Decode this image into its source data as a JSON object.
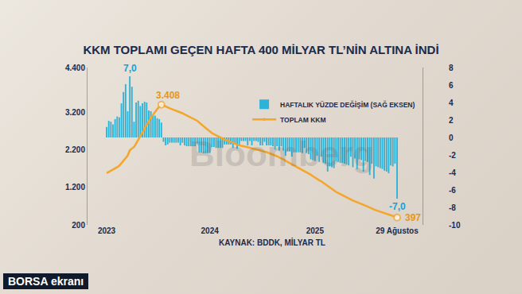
{
  "chart_data": {
    "type": "combo",
    "title": "KKM TOPLAMI GEÇEN HAFTA 400 MİLYAR TL’NİN ALTINA İNDİ",
    "source": "KAYNAK: BDDK, MİLYAR TL",
    "logo": "BORSA ekranı",
    "watermark": "Bloomberg",
    "categories": [
      "2023",
      null,
      null,
      null,
      null,
      null,
      null,
      null,
      null,
      null,
      null,
      null,
      null,
      null,
      null,
      null,
      null,
      null,
      null,
      null,
      null,
      null,
      null,
      null,
      null,
      null,
      null,
      null,
      null,
      null,
      null,
      null,
      null,
      null,
      null,
      null,
      null,
      null,
      null,
      null,
      null,
      null,
      null,
      null,
      null,
      null,
      null,
      null,
      null,
      "2024",
      null,
      null,
      null,
      null,
      null,
      null,
      null,
      null,
      null,
      null,
      null,
      null,
      null,
      null,
      null,
      null,
      null,
      null,
      null,
      null,
      null,
      null,
      null,
      null,
      null,
      null,
      null,
      null,
      null,
      null,
      null,
      null,
      null,
      null,
      null,
      null,
      null,
      null,
      null,
      null,
      null,
      null,
      null,
      null,
      null,
      null,
      null,
      null,
      null,
      "2025",
      null,
      null,
      null,
      null,
      null,
      null,
      null,
      null,
      null,
      null,
      null,
      null,
      null,
      null,
      null,
      null,
      null,
      null,
      null,
      null,
      null,
      null,
      null,
      null,
      null,
      null,
      null,
      null,
      null,
      null,
      null,
      null,
      null,
      null,
      null,
      null,
      null,
      null,
      "29 Ağustos"
    ],
    "series": [
      {
        "name": "HAFTALIK YÜZDE DEĞİŞİM (SAĞ EKSEN)",
        "type": "bar",
        "color": "#2bb3d9",
        "axis": "y2",
        "values": [
          1.2,
          1.9,
          1.8,
          1.5,
          2.1,
          2.4,
          2.3,
          3.9,
          5.2,
          6.1,
          3.0,
          7.0,
          5.8,
          1.8,
          4.0,
          4.2,
          3.6,
          3.9,
          4.1,
          4.0,
          3.1,
          3.0,
          2.6,
          2.5,
          2.2,
          2.1,
          1.7,
          -0.5,
          -0.9,
          -0.8,
          -0.6,
          -0.6,
          -0.6,
          -0.6,
          -0.6,
          -0.9,
          -0.6,
          -0.9,
          -1.0,
          -1.0,
          -1.0,
          -1.0,
          -1.0,
          -0.7,
          -1.7,
          -1.7,
          -1.8,
          -1.8,
          -1.8,
          -1.8,
          -1.1,
          -1.1,
          -1.2,
          -1.2,
          -1.2,
          -1.2,
          -0.8,
          -0.8,
          -0.8,
          -0.8,
          -1.2,
          -0.8,
          -1.3,
          -0.9,
          -0.4,
          -0.4,
          -0.4,
          -0.9,
          -0.4,
          -0.9,
          -0.4,
          -0.4,
          -0.5,
          -0.9,
          -0.9,
          -0.5,
          -0.9,
          -0.9,
          -0.9,
          -1.0,
          -1.4,
          -1.0,
          -1.5,
          -1.0,
          -1.5,
          -2.1,
          -1.6,
          -1.6,
          -2.2,
          -1.7,
          -1.7,
          -1.7,
          -1.7,
          -1.8,
          -1.2,
          -1.8,
          -1.9,
          -2.5,
          -2.6,
          -2.7,
          -2.1,
          -2.8,
          -2.2,
          -2.9,
          -3.0,
          -3.9,
          -3.3,
          -3.4,
          -3.5,
          -2.7,
          -2.8,
          -2.9,
          -2.9,
          -3.0,
          -3.1,
          -3.2,
          -2.2,
          -3.4,
          -2.4,
          -3.6,
          -2.5,
          -2.6,
          -3.9,
          -2.7,
          -2.8,
          -4.3,
          -3.0,
          -4.7,
          -3.3,
          -3.4,
          -3.5,
          -3.6,
          -3.8,
          -3.9,
          -4.1,
          -3.2,
          -3.3,
          -3.0,
          -7.0
        ],
        "value_labels": [
          null,
          null,
          null,
          null,
          null,
          null,
          null,
          null,
          null,
          null,
          null,
          "7,0",
          null,
          null,
          null,
          null,
          null,
          null,
          null,
          null,
          null,
          null,
          null,
          null,
          null,
          null,
          null,
          null,
          null,
          null,
          null,
          null,
          null,
          null,
          null,
          null,
          null,
          null,
          null,
          null,
          null,
          null,
          null,
          null,
          null,
          null,
          null,
          null,
          null,
          null,
          null,
          null,
          null,
          null,
          null,
          null,
          null,
          null,
          null,
          null,
          null,
          null,
          null,
          null,
          null,
          null,
          null,
          null,
          null,
          null,
          null,
          null,
          null,
          null,
          null,
          null,
          null,
          null,
          null,
          null,
          null,
          null,
          null,
          null,
          null,
          null,
          null,
          null,
          null,
          null,
          null,
          null,
          null,
          null,
          null,
          null,
          null,
          null,
          null,
          null,
          null,
          null,
          null,
          null,
          null,
          null,
          null,
          null,
          null,
          null,
          null,
          null,
          null,
          null,
          null,
          null,
          null,
          null,
          null,
          null,
          null,
          null,
          null,
          null,
          null,
          null,
          null,
          null,
          null,
          null,
          null,
          null,
          null,
          null,
          null,
          null,
          null,
          null,
          "-7,0"
        ]
      },
      {
        "name": "TOPLAM KKM",
        "type": "line",
        "color": "#f4a62a",
        "values": [
          1580,
          1610,
          1640,
          1665,
          1700,
          1740,
          1780,
          1850,
          1920,
          1990,
          2050,
          2195,
          2240,
          2280,
          2370,
          2470,
          2560,
          2660,
          2770,
          2880,
          2970,
          3060,
          3140,
          3220,
          3290,
          3350,
          3408,
          3390,
          3360,
          3330,
          3310,
          3290,
          3270,
          3250,
          3230,
          3200,
          3180,
          3150,
          3120,
          3090,
          3060,
          3030,
          3000,
          2980,
          2930,
          2880,
          2830,
          2780,
          2730,
          2680,
          2650,
          2620,
          2590,
          2560,
          2530,
          2500,
          2480,
          2460,
          2440,
          2420,
          2390,
          2370,
          2340,
          2320,
          2310,
          2300,
          2290,
          2270,
          2260,
          2240,
          2230,
          2220,
          2210,
          2190,
          2170,
          2160,
          2140,
          2120,
          2100,
          2080,
          2050,
          2030,
          2000,
          1980,
          1950,
          1910,
          1880,
          1850,
          1810,
          1780,
          1750,
          1720,
          1690,
          1660,
          1640,
          1610,
          1580,
          1540,
          1500,
          1460,
          1430,
          1390,
          1360,
          1320,
          1280,
          1230,
          1190,
          1150,
          1110,
          1080,
          1050,
          1020,
          990,
          960,
          930,
          900,
          880,
          850,
          830,
          800,
          780,
          760,
          730,
          710,
          690,
          660,
          640,
          610,
          590,
          570,
          550,
          530,
          510,
          490,
          470,
          455,
          440,
          427,
          397
        ],
        "value_labels": [
          null,
          null,
          null,
          null,
          null,
          null,
          null,
          null,
          null,
          null,
          null,
          null,
          null,
          null,
          null,
          null,
          null,
          null,
          null,
          null,
          null,
          null,
          null,
          null,
          null,
          null,
          "3.408",
          null,
          null,
          null,
          null,
          null,
          null,
          null,
          null,
          null,
          null,
          null,
          null,
          null,
          null,
          null,
          null,
          null,
          null,
          null,
          null,
          null,
          null,
          null,
          null,
          null,
          null,
          null,
          null,
          null,
          null,
          null,
          null,
          null,
          null,
          null,
          null,
          null,
          null,
          null,
          null,
          null,
          null,
          null,
          null,
          null,
          null,
          null,
          null,
          null,
          null,
          null,
          null,
          null,
          null,
          null,
          null,
          null,
          null,
          null,
          null,
          null,
          null,
          null,
          null,
          null,
          null,
          null,
          null,
          null,
          null,
          null,
          null,
          null,
          null,
          null,
          null,
          null,
          null,
          null,
          null,
          null,
          null,
          null,
          null,
          null,
          null,
          null,
          null,
          null,
          null,
          null,
          null,
          null,
          null,
          null,
          null,
          null,
          null,
          null,
          null,
          null,
          null,
          null,
          null,
          null,
          null,
          null,
          null,
          null,
          null,
          null,
          "397"
        ]
      }
    ],
    "ylim": [
      200,
      4400
    ],
    "yticks": [
      200,
      {
        "value": 1200,
        "label": "1.200"
      },
      {
        "value": 2200,
        "label": "2.200"
      },
      {
        "value": 3200,
        "label": "3.200"
      },
      {
        "value": 4400,
        "label": "4.400"
      }
    ],
    "y2lim": [
      -10,
      8
    ],
    "y2ticks": [
      -10,
      -8,
      -6,
      -4,
      -2,
      0,
      2,
      4,
      6,
      8
    ],
    "grid": false,
    "legend": "top"
  }
}
